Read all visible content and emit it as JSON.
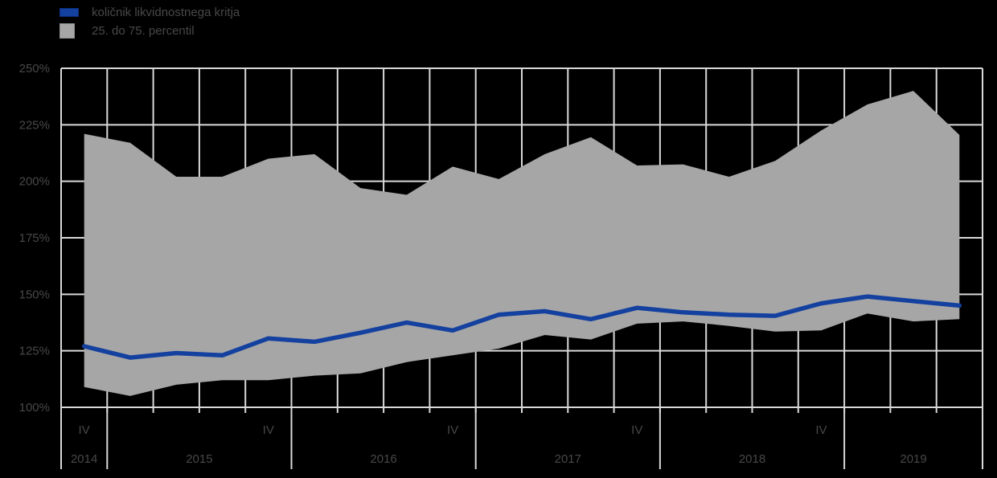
{
  "legend": {
    "series1_label": "količnik likvidnostnega kritja",
    "series2_label": "25. do 75. percentil"
  },
  "colors": {
    "background": "#000000",
    "grid": "#d9d9d9",
    "band": "#a6a6a6",
    "line": "#14419f",
    "text": "#484848"
  },
  "chart_data": {
    "type": "line",
    "title": "",
    "xlabel": "",
    "ylabel": "",
    "ylim": [
      100,
      250
    ],
    "y_ticks": [
      100,
      125,
      150,
      175,
      200,
      225,
      250
    ],
    "y_tick_labels": [
      "100%",
      "125%",
      "150%",
      "175%",
      "200%",
      "225%",
      "250%"
    ],
    "grid": true,
    "legend_position": "top-left",
    "x": [
      "2014 Q4",
      "2015 Q1",
      "2015 Q2",
      "2015 Q3",
      "2015 Q4",
      "2016 Q1",
      "2016 Q2",
      "2016 Q3",
      "2016 Q4",
      "2017 Q1",
      "2017 Q2",
      "2017 Q3",
      "2017 Q4",
      "2018 Q1",
      "2018 Q2",
      "2018 Q3",
      "2018 Q4",
      "2019 Q1",
      "2019 Q2",
      "2019 Q3"
    ],
    "quarter_marker_label": "IV",
    "years": [
      {
        "label": "2014",
        "span": 1,
        "iv_index": 0
      },
      {
        "label": "2015",
        "span": 4,
        "iv_index": 4
      },
      {
        "label": "2016",
        "span": 4,
        "iv_index": 8
      },
      {
        "label": "2017",
        "span": 4,
        "iv_index": 12
      },
      {
        "label": "2018",
        "span": 4,
        "iv_index": 16
      },
      {
        "label": "2019",
        "span": 3,
        "iv_index": null
      }
    ],
    "series": [
      {
        "name": "količnik likvidnostnega kritja",
        "type": "line",
        "values": [
          127,
          122,
          124,
          123,
          130.5,
          129,
          133,
          137.5,
          134,
          141,
          142.5,
          139,
          144,
          142,
          141,
          140.5,
          146,
          149,
          147,
          145
        ]
      },
      {
        "name": "25. do 75. percentil",
        "type": "band",
        "upper": [
          221,
          217,
          202,
          202,
          210,
          212,
          197,
          194,
          206.5,
          201,
          212,
          219.5,
          207,
          207.5,
          202,
          209,
          222.5,
          234,
          240,
          220.5
        ],
        "lower": [
          109,
          105,
          110,
          112,
          112,
          114,
          115,
          120,
          123,
          126,
          132,
          130,
          137,
          138,
          136,
          133.5,
          134,
          141.5,
          138,
          139
        ]
      }
    ]
  }
}
